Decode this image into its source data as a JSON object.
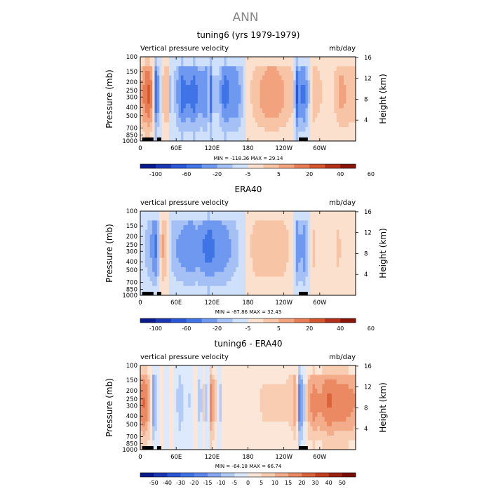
{
  "page_title": "ANN",
  "colors": {
    "cb1": [
      "#0a1a8c",
      "#1a36b4",
      "#2a55d6",
      "#3f74e6",
      "#6f98f0",
      "#a4c0f5",
      "#cfe0fb",
      "#fbe0cd",
      "#f7c4a5",
      "#f2a27d",
      "#e87d55",
      "#d4542e",
      "#b2301a",
      "#8a1408"
    ],
    "cb2": [
      "#0a1a8c",
      "#1a36b4",
      "#2a55d6",
      "#3f74e6",
      "#5c88ee",
      "#86a8f3",
      "#b3ccf7",
      "#dde9fc",
      "#fce6d8",
      "#f8cdb2",
      "#f3ad8b",
      "#ea8962",
      "#db633b",
      "#c23f22",
      "#9e2212",
      "#7a0d05"
    ]
  },
  "chart_data": [
    {
      "type": "heatmap",
      "title": "tuning6 (yrs 1979-1979)",
      "left_label": "Vertical pressure velocity",
      "right_label": "mb/day",
      "ylabel": "Pressure (mb)",
      "ylabel2": "Height (km)",
      "stats": "MIN = -118.36   MAX =  29.14",
      "x_ticks": [
        "0",
        "60E",
        "120E",
        "180",
        "120W",
        "60W"
      ],
      "x_tick_lon": [
        0,
        60,
        120,
        180,
        240,
        300
      ],
      "xlim": [
        0,
        360
      ],
      "y_ticks": [
        "100",
        "150",
        "200",
        "250",
        "300",
        "400",
        "500",
        "700",
        "850",
        "1000"
      ],
      "y_tick_p": [
        100,
        150,
        200,
        250,
        300,
        400,
        500,
        700,
        850,
        1000
      ],
      "ylim": [
        100,
        1000
      ],
      "height_ticks": [
        "4",
        "8",
        "12",
        "16"
      ],
      "height_km": [
        4,
        8,
        12,
        16
      ],
      "colorbar_labels": [
        "-100",
        "-60",
        "-20",
        "-5",
        "5",
        "20",
        "40",
        "60"
      ],
      "colorbar_levels": [
        -100,
        -60,
        -20,
        -5,
        5,
        20,
        40,
        60
      ],
      "profile": [
        [
          0,
          3
        ],
        [
          8,
          6
        ],
        [
          14,
          7
        ],
        [
          20,
          5
        ],
        [
          25,
          -7
        ],
        [
          30,
          -4
        ],
        [
          38,
          2
        ],
        [
          45,
          4
        ],
        [
          50,
          -2
        ],
        [
          55,
          -1
        ],
        [
          60,
          -3
        ],
        [
          70,
          -6
        ],
        [
          80,
          -5
        ],
        [
          90,
          -6
        ],
        [
          100,
          -4
        ],
        [
          110,
          -5
        ],
        [
          113,
          -2
        ],
        [
          118,
          -6
        ],
        [
          122,
          -2
        ],
        [
          130,
          -2
        ],
        [
          140,
          -6
        ],
        [
          150,
          -5
        ],
        [
          160,
          -5
        ],
        [
          168,
          -3
        ],
        [
          175,
          -1
        ],
        [
          180,
          1
        ],
        [
          195,
          3
        ],
        [
          205,
          4
        ],
        [
          215,
          5
        ],
        [
          225,
          5
        ],
        [
          235,
          4
        ],
        [
          245,
          3
        ],
        [
          255,
          2
        ],
        [
          262,
          -7
        ],
        [
          267,
          -4
        ],
        [
          272,
          -6
        ],
        [
          280,
          -3
        ],
        [
          290,
          3
        ],
        [
          300,
          2
        ],
        [
          310,
          1
        ],
        [
          320,
          1
        ],
        [
          335,
          4
        ],
        [
          350,
          3
        ],
        [
          360,
          3
        ]
      ]
    },
    {
      "type": "heatmap",
      "title": "ERA40",
      "left_label": "vertical pressure velocity",
      "right_label": "mb/day",
      "ylabel": "Pressure (mb)",
      "ylabel2": "Height (km)",
      "stats": "MIN = -87.86   MAX =  32.43",
      "x_ticks": [
        "0",
        "60E",
        "120E",
        "180",
        "120W",
        "60W"
      ],
      "x_tick_lon": [
        0,
        60,
        120,
        180,
        240,
        300
      ],
      "xlim": [
        0,
        360
      ],
      "y_ticks": [
        "100",
        "150",
        "200",
        "250",
        "300",
        "400",
        "500",
        "700",
        "850",
        "1000"
      ],
      "y_tick_p": [
        100,
        150,
        200,
        250,
        300,
        400,
        500,
        700,
        850,
        1000
      ],
      "ylim": [
        100,
        1000
      ],
      "height_ticks": [
        "4",
        "8",
        "12",
        "16"
      ],
      "height_km": [
        4,
        8,
        12,
        16
      ],
      "colorbar_labels": [
        "-100",
        "-60",
        "-20",
        "-5",
        "5",
        "20",
        "40",
        "60"
      ],
      "colorbar_levels": [
        -100,
        -60,
        -20,
        -5,
        5,
        20,
        40,
        60
      ],
      "profile": [
        [
          0,
          -1
        ],
        [
          10,
          -2
        ],
        [
          20,
          -4
        ],
        [
          25,
          -6
        ],
        [
          30,
          -3
        ],
        [
          35,
          3
        ],
        [
          40,
          4
        ],
        [
          45,
          2
        ],
        [
          55,
          -3
        ],
        [
          70,
          -4
        ],
        [
          85,
          -5
        ],
        [
          95,
          -4
        ],
        [
          105,
          -5
        ],
        [
          115,
          -6
        ],
        [
          125,
          -5
        ],
        [
          135,
          -5
        ],
        [
          145,
          -4
        ],
        [
          155,
          -3
        ],
        [
          170,
          -1
        ],
        [
          180,
          1
        ],
        [
          195,
          3
        ],
        [
          210,
          3
        ],
        [
          225,
          3
        ],
        [
          235,
          3
        ],
        [
          245,
          2
        ],
        [
          255,
          1
        ],
        [
          262,
          -5
        ],
        [
          268,
          -3
        ],
        [
          275,
          -5
        ],
        [
          280,
          -2
        ],
        [
          290,
          2
        ],
        [
          300,
          1
        ],
        [
          310,
          0
        ],
        [
          320,
          1
        ],
        [
          330,
          2
        ],
        [
          345,
          1
        ],
        [
          360,
          0
        ]
      ]
    },
    {
      "type": "heatmap",
      "title": "tuning6 - ERA40",
      "left_label": "vertical pressure velocity",
      "right_label": "mb/day",
      "ylabel": "Pressure (mb)",
      "ylabel2": "Height (km)",
      "stats": "MIN = -64.18   MAX =  66.74",
      "x_ticks": [
        "0",
        "60E",
        "120E",
        "180",
        "120W",
        "60W"
      ],
      "x_tick_lon": [
        0,
        60,
        120,
        180,
        240,
        300
      ],
      "xlim": [
        0,
        360
      ],
      "y_ticks": [
        "100",
        "150",
        "200",
        "250",
        "300",
        "400",
        "500",
        "700",
        "850",
        "1000"
      ],
      "y_tick_p": [
        100,
        150,
        200,
        250,
        300,
        400,
        500,
        700,
        850,
        1000
      ],
      "ylim": [
        100,
        1000
      ],
      "height_ticks": [
        "4",
        "8",
        "12",
        "16"
      ],
      "height_km": [
        4,
        8,
        12,
        16
      ],
      "colorbar_labels": [
        "-50",
        "-40",
        "-30",
        "-20",
        "-15",
        "-10",
        "-5",
        "0",
        "5",
        "10",
        "15",
        "20",
        "30",
        "40",
        "50"
      ],
      "colorbar_levels": [
        -50,
        -40,
        -30,
        -20,
        -15,
        -10,
        -5,
        0,
        5,
        10,
        15,
        20,
        30,
        40,
        50
      ],
      "profile": [
        [
          0,
          6
        ],
        [
          8,
          7
        ],
        [
          15,
          4
        ],
        [
          22,
          -5
        ],
        [
          28,
          -2
        ],
        [
          35,
          2
        ],
        [
          45,
          -1
        ],
        [
          55,
          1
        ],
        [
          65,
          -3
        ],
        [
          75,
          -1
        ],
        [
          85,
          -2
        ],
        [
          95,
          2
        ],
        [
          100,
          -5
        ],
        [
          105,
          3
        ],
        [
          112,
          -4
        ],
        [
          118,
          6
        ],
        [
          125,
          3
        ],
        [
          132,
          -3
        ],
        [
          140,
          1
        ],
        [
          150,
          1
        ],
        [
          160,
          1
        ],
        [
          175,
          1
        ],
        [
          190,
          1
        ],
        [
          205,
          2
        ],
        [
          220,
          2
        ],
        [
          235,
          2
        ],
        [
          245,
          2
        ],
        [
          255,
          3
        ],
        [
          260,
          6
        ],
        [
          266,
          -6
        ],
        [
          272,
          -4
        ],
        [
          280,
          4
        ],
        [
          290,
          6
        ],
        [
          300,
          5
        ],
        [
          315,
          7
        ],
        [
          330,
          6
        ],
        [
          345,
          6
        ],
        [
          360,
          5
        ]
      ]
    }
  ]
}
